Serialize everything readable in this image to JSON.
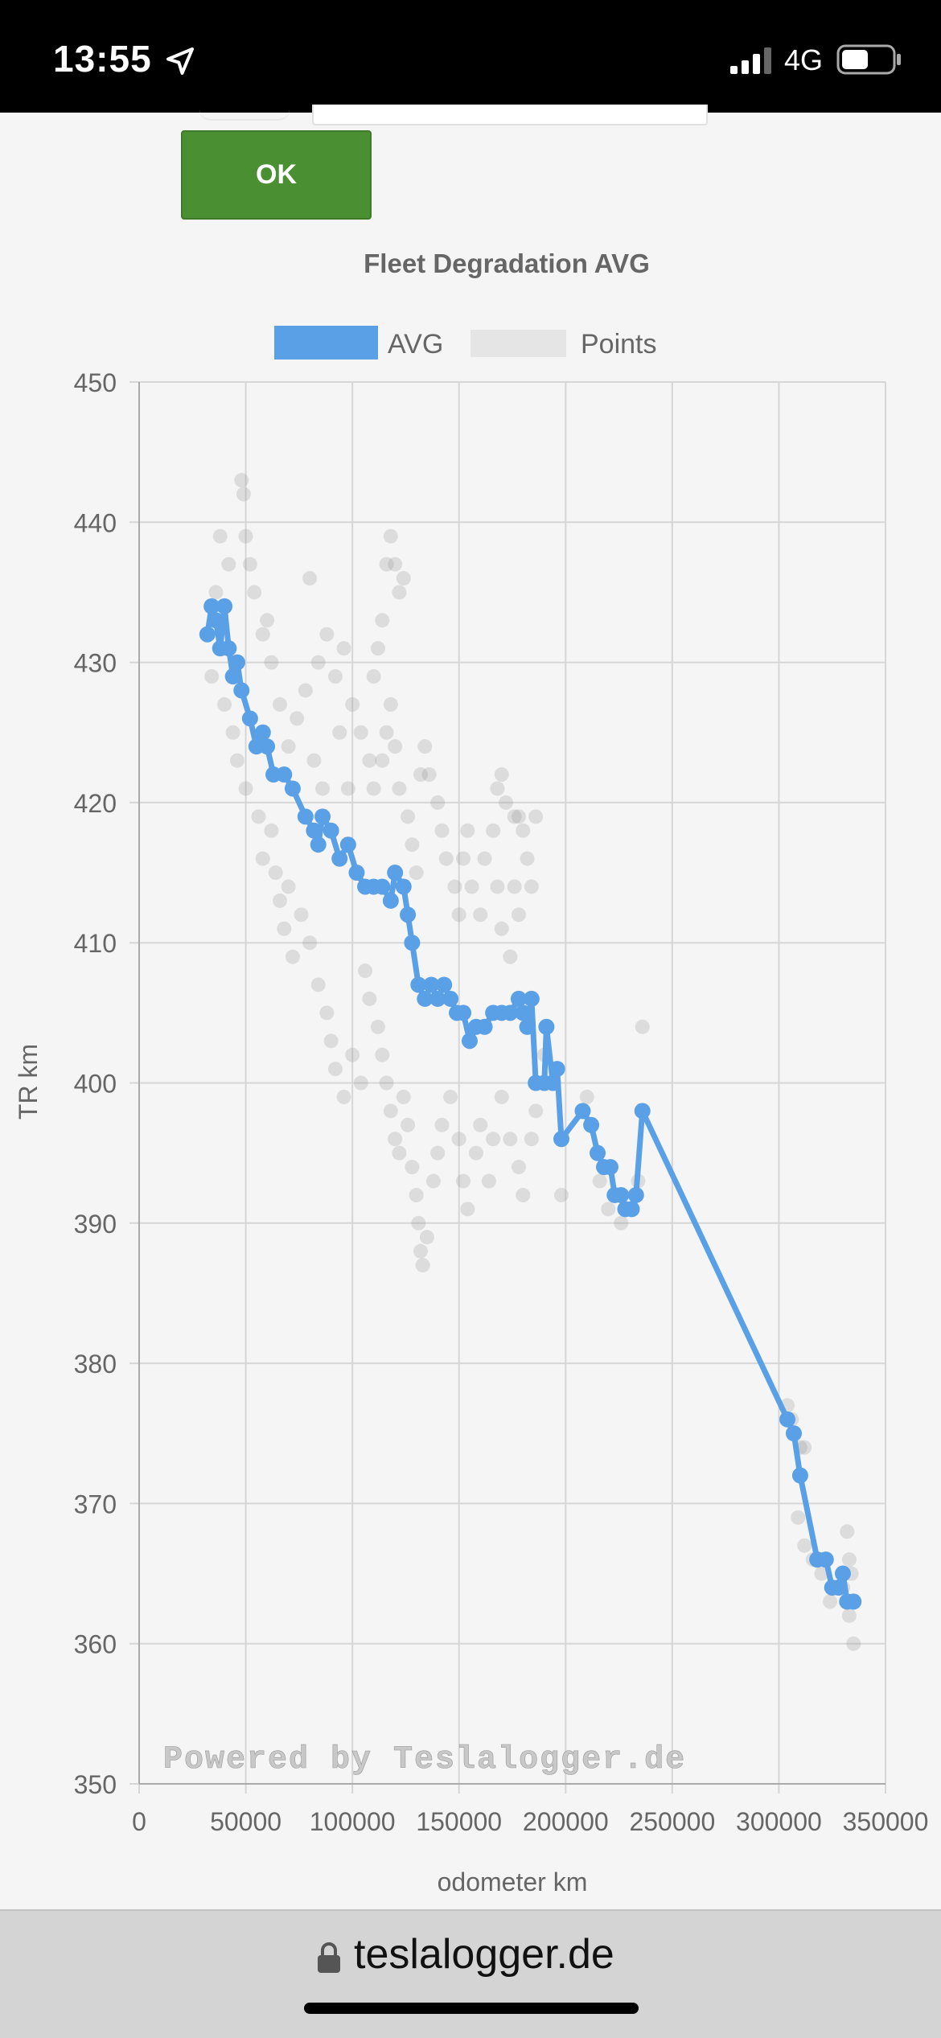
{
  "status_bar": {
    "time": "13:55",
    "network": "4G"
  },
  "form": {
    "ok_label": "OK"
  },
  "browser": {
    "url": "teslalogger.de"
  },
  "chart_data": {
    "type": "scatter",
    "title": "Fleet Degradation AVG",
    "xlabel": "odometer km",
    "ylabel": "TR km",
    "xlim": [
      0,
      350000
    ],
    "ylim": [
      350,
      450
    ],
    "x_ticks": [
      "0",
      "50000",
      "100000",
      "150000",
      "200000",
      "250000",
      "300000",
      "350000"
    ],
    "y_ticks": [
      "350",
      "360",
      "370",
      "380",
      "390",
      "400",
      "410",
      "420",
      "430",
      "440",
      "450"
    ],
    "grid": true,
    "legend": {
      "position": "top",
      "entries": [
        "AVG",
        "Points"
      ]
    },
    "watermark": "Powered by Teslalogger.de",
    "colors": {
      "avg": "#5aa0e6",
      "points": "#9a9a9a"
    },
    "series": [
      {
        "name": "AVG",
        "type": "line",
        "points": [
          [
            32000,
            432
          ],
          [
            34000,
            434
          ],
          [
            36000,
            433
          ],
          [
            38000,
            431
          ],
          [
            40000,
            434
          ],
          [
            42000,
            431
          ],
          [
            44000,
            429
          ],
          [
            46000,
            430
          ],
          [
            48000,
            428
          ],
          [
            52000,
            426
          ],
          [
            55000,
            424
          ],
          [
            58000,
            425
          ],
          [
            60000,
            424
          ],
          [
            63000,
            422
          ],
          [
            68000,
            422
          ],
          [
            72000,
            421
          ],
          [
            78000,
            419
          ],
          [
            82000,
            418
          ],
          [
            84000,
            417
          ],
          [
            86000,
            419
          ],
          [
            90000,
            418
          ],
          [
            94000,
            416
          ],
          [
            98000,
            417
          ],
          [
            102000,
            415
          ],
          [
            106000,
            414
          ],
          [
            110000,
            414
          ],
          [
            114000,
            414
          ],
          [
            118000,
            413
          ],
          [
            120000,
            415
          ],
          [
            124000,
            414
          ],
          [
            126000,
            412
          ],
          [
            128000,
            410
          ],
          [
            131000,
            407
          ],
          [
            134000,
            406
          ],
          [
            137000,
            407
          ],
          [
            140000,
            406
          ],
          [
            143000,
            407
          ],
          [
            146000,
            406
          ],
          [
            149000,
            405
          ],
          [
            152000,
            405
          ],
          [
            155000,
            403
          ],
          [
            158000,
            404
          ],
          [
            162000,
            404
          ],
          [
            166000,
            405
          ],
          [
            170000,
            405
          ],
          [
            174000,
            405
          ],
          [
            178000,
            406
          ],
          [
            180000,
            405
          ],
          [
            182000,
            404
          ],
          [
            184000,
            406
          ],
          [
            186000,
            400
          ],
          [
            190000,
            400
          ],
          [
            191000,
            404
          ],
          [
            194000,
            400
          ],
          [
            196000,
            401
          ],
          [
            198000,
            396
          ],
          [
            208000,
            398
          ],
          [
            212000,
            397
          ],
          [
            215000,
            395
          ],
          [
            218000,
            394
          ],
          [
            221000,
            394
          ],
          [
            223000,
            392
          ],
          [
            226000,
            392
          ],
          [
            228000,
            391
          ],
          [
            231000,
            391
          ],
          [
            233000,
            392
          ],
          [
            236000,
            398
          ],
          [
            304000,
            376
          ],
          [
            307000,
            375
          ],
          [
            310000,
            372
          ],
          [
            318000,
            366
          ],
          [
            322000,
            366
          ],
          [
            325000,
            364
          ],
          [
            328000,
            364
          ],
          [
            330000,
            365
          ],
          [
            332000,
            363
          ],
          [
            335000,
            363
          ]
        ]
      },
      {
        "name": "Points",
        "type": "scatter",
        "points": [
          [
            36000,
            435
          ],
          [
            38000,
            439
          ],
          [
            42000,
            437
          ],
          [
            50000,
            439
          ],
          [
            52000,
            437
          ],
          [
            54000,
            435
          ],
          [
            60000,
            433
          ],
          [
            48000,
            443
          ],
          [
            49000,
            442
          ],
          [
            80000,
            436
          ],
          [
            34000,
            429
          ],
          [
            40000,
            427
          ],
          [
            44000,
            425
          ],
          [
            46000,
            423
          ],
          [
            50000,
            421
          ],
          [
            56000,
            419
          ],
          [
            58000,
            416
          ],
          [
            62000,
            418
          ],
          [
            64000,
            415
          ],
          [
            66000,
            413
          ],
          [
            68000,
            411
          ],
          [
            70000,
            414
          ],
          [
            72000,
            409
          ],
          [
            76000,
            412
          ],
          [
            80000,
            410
          ],
          [
            84000,
            407
          ],
          [
            88000,
            405
          ],
          [
            90000,
            403
          ],
          [
            92000,
            401
          ],
          [
            96000,
            399
          ],
          [
            100000,
            402
          ],
          [
            104000,
            400
          ],
          [
            106000,
            408
          ],
          [
            108000,
            406
          ],
          [
            112000,
            404
          ],
          [
            114000,
            402
          ],
          [
            116000,
            400
          ],
          [
            118000,
            398
          ],
          [
            120000,
            396
          ],
          [
            122000,
            395
          ],
          [
            124000,
            399
          ],
          [
            126000,
            397
          ],
          [
            128000,
            394
          ],
          [
            130000,
            392
          ],
          [
            131000,
            390
          ],
          [
            132000,
            388
          ],
          [
            133000,
            387
          ],
          [
            135000,
            389
          ],
          [
            138000,
            393
          ],
          [
            140000,
            395
          ],
          [
            142000,
            397
          ],
          [
            146000,
            399
          ],
          [
            150000,
            396
          ],
          [
            152000,
            393
          ],
          [
            154000,
            391
          ],
          [
            158000,
            395
          ],
          [
            160000,
            397
          ],
          [
            164000,
            393
          ],
          [
            166000,
            396
          ],
          [
            170000,
            399
          ],
          [
            174000,
            396
          ],
          [
            178000,
            394
          ],
          [
            180000,
            392
          ],
          [
            184000,
            396
          ],
          [
            186000,
            398
          ],
          [
            190000,
            402
          ],
          [
            198000,
            392
          ],
          [
            210000,
            399
          ],
          [
            216000,
            393
          ],
          [
            220000,
            391
          ],
          [
            226000,
            390
          ],
          [
            234000,
            393
          ],
          [
            236000,
            404
          ],
          [
            100000,
            427
          ],
          [
            104000,
            425
          ],
          [
            108000,
            423
          ],
          [
            110000,
            421
          ],
          [
            114000,
            423
          ],
          [
            116000,
            425
          ],
          [
            118000,
            427
          ],
          [
            120000,
            424
          ],
          [
            122000,
            421
          ],
          [
            126000,
            419
          ],
          [
            128000,
            417
          ],
          [
            130000,
            415
          ],
          [
            132000,
            422
          ],
          [
            134000,
            424
          ],
          [
            136000,
            422
          ],
          [
            140000,
            420
          ],
          [
            142000,
            418
          ],
          [
            144000,
            416
          ],
          [
            148000,
            414
          ],
          [
            150000,
            412
          ],
          [
            152000,
            416
          ],
          [
            154000,
            418
          ],
          [
            156000,
            414
          ],
          [
            160000,
            412
          ],
          [
            162000,
            416
          ],
          [
            166000,
            418
          ],
          [
            168000,
            414
          ],
          [
            170000,
            411
          ],
          [
            174000,
            409
          ],
          [
            176000,
            414
          ],
          [
            178000,
            412
          ],
          [
            180000,
            418
          ],
          [
            182000,
            416
          ],
          [
            184000,
            414
          ],
          [
            186000,
            419
          ],
          [
            168000,
            421
          ],
          [
            170000,
            422
          ],
          [
            172000,
            420
          ],
          [
            176000,
            419
          ],
          [
            178000,
            419
          ],
          [
            120000,
            437
          ],
          [
            118000,
            439
          ],
          [
            116000,
            437
          ],
          [
            122000,
            435
          ],
          [
            124000,
            436
          ],
          [
            114000,
            433
          ],
          [
            112000,
            431
          ],
          [
            110000,
            429
          ],
          [
            96000,
            431
          ],
          [
            92000,
            429
          ],
          [
            88000,
            432
          ],
          [
            84000,
            430
          ],
          [
            78000,
            428
          ],
          [
            74000,
            426
          ],
          [
            70000,
            424
          ],
          [
            66000,
            427
          ],
          [
            62000,
            430
          ],
          [
            58000,
            432
          ],
          [
            94000,
            425
          ],
          [
            98000,
            421
          ],
          [
            86000,
            421
          ],
          [
            82000,
            423
          ],
          [
            304000,
            377
          ],
          [
            306000,
            376
          ],
          [
            310000,
            374
          ],
          [
            312000,
            374
          ],
          [
            309000,
            369
          ],
          [
            312000,
            367
          ],
          [
            316000,
            366
          ],
          [
            320000,
            365
          ],
          [
            324000,
            363
          ],
          [
            330000,
            364
          ],
          [
            332000,
            368
          ],
          [
            333000,
            366
          ],
          [
            334000,
            365
          ],
          [
            333000,
            362
          ],
          [
            335000,
            360
          ]
        ]
      }
    ]
  }
}
